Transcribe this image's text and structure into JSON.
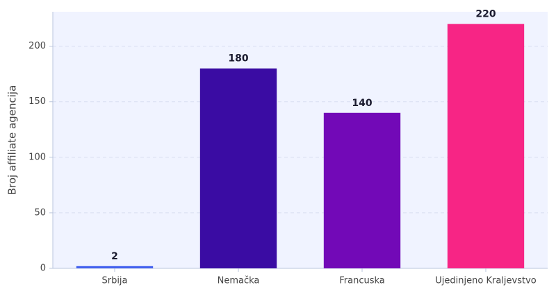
{
  "chart_data": {
    "type": "bar",
    "y_label": "Broj affiliate agencija",
    "categories": [
      "Srbija",
      "Nemačka",
      "Francuska",
      "Ujedinjeno Kraljevstvo"
    ],
    "values": [
      2,
      180,
      140,
      220
    ],
    "colors": [
      "#4361ee",
      "#3a0ca3",
      "#7209b7",
      "#f72585"
    ],
    "ylim": [
      0,
      231
    ],
    "yticks": [
      0,
      50,
      100,
      150,
      200
    ],
    "grid": true
  }
}
